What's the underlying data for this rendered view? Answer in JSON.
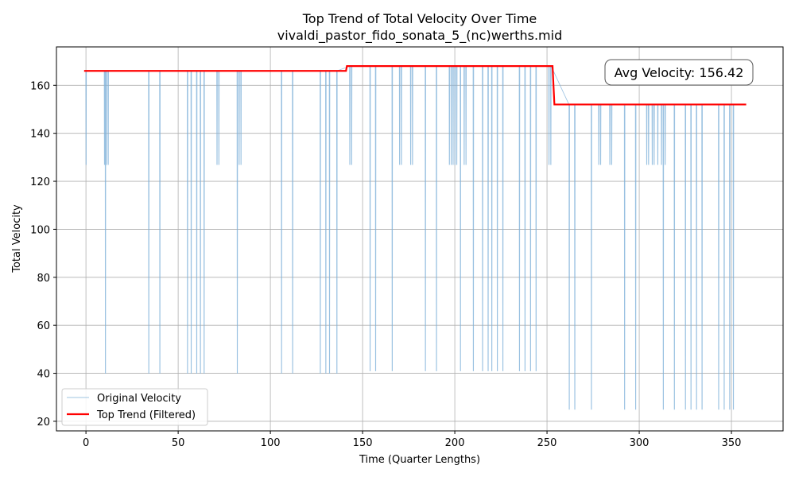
{
  "chart_data": {
    "type": "line",
    "title": "Top Trend of Total Velocity Over Time",
    "subtitle": "vivaldi_pastor_fido_sonata_5_(nc)werths.mid",
    "xlabel": "Time (Quarter Lengths)",
    "ylabel": "Total Velocity",
    "xlim": [
      -16,
      378
    ],
    "ylim": [
      16,
      176
    ],
    "xticks": [
      0,
      50,
      100,
      150,
      200,
      250,
      300,
      350
    ],
    "yticks": [
      20,
      40,
      60,
      80,
      100,
      120,
      140,
      160
    ],
    "grid": true,
    "legend_position": "lower-left",
    "annotation": "Avg Velocity: 156.42",
    "colors": {
      "original": "#7fb2d9",
      "trend": "#ff0000"
    },
    "series": [
      {
        "name": "Original Velocity",
        "base": {
          "x": [
            0,
            254
          ],
          "y": [
            166,
            152
          ]
        },
        "dips": [
          [
            0,
            127
          ],
          [
            10,
            127
          ],
          [
            10.5,
            40
          ],
          [
            11,
            127
          ],
          [
            12,
            127
          ],
          [
            34,
            40
          ],
          [
            40,
            40
          ],
          [
            55,
            40
          ],
          [
            57,
            40
          ],
          [
            60,
            40
          ],
          [
            62,
            40
          ],
          [
            64,
            40
          ],
          [
            71,
            127
          ],
          [
            72,
            127
          ],
          [
            82,
            40
          ],
          [
            83,
            127
          ],
          [
            84,
            127
          ],
          [
            106,
            40
          ],
          [
            112,
            40
          ],
          [
            127,
            40
          ],
          [
            130,
            40
          ],
          [
            132,
            40
          ],
          [
            136,
            40
          ],
          [
            143,
            127
          ],
          [
            144,
            127
          ],
          [
            154,
            41
          ],
          [
            157,
            41
          ],
          [
            166,
            41
          ],
          [
            170,
            127
          ],
          [
            171,
            127
          ],
          [
            176,
            127
          ],
          [
            177,
            127
          ],
          [
            184,
            41
          ],
          [
            190,
            41
          ],
          [
            197,
            127
          ],
          [
            198,
            127
          ],
          [
            199,
            127
          ],
          [
            200,
            127
          ],
          [
            201,
            127
          ],
          [
            203,
            41
          ],
          [
            205,
            127
          ],
          [
            206,
            127
          ],
          [
            210,
            41
          ],
          [
            215,
            41
          ],
          [
            218,
            41
          ],
          [
            220,
            41
          ],
          [
            223,
            41
          ],
          [
            226,
            41
          ],
          [
            235,
            41
          ],
          [
            238,
            41
          ],
          [
            241,
            41
          ],
          [
            244,
            41
          ],
          [
            251,
            127
          ],
          [
            252,
            127
          ],
          [
            262,
            25
          ],
          [
            265,
            25
          ],
          [
            274,
            25
          ],
          [
            278,
            127
          ],
          [
            279,
            127
          ],
          [
            284,
            127
          ],
          [
            285,
            127
          ],
          [
            292,
            25
          ],
          [
            298,
            25
          ],
          [
            304,
            127
          ],
          [
            305,
            127
          ],
          [
            307,
            127
          ],
          [
            308,
            127
          ],
          [
            310,
            127
          ],
          [
            312,
            127
          ],
          [
            313,
            25
          ],
          [
            314,
            127
          ],
          [
            319,
            25
          ],
          [
            325,
            25
          ],
          [
            328,
            25
          ],
          [
            331,
            25
          ],
          [
            334,
            25
          ],
          [
            343,
            25
          ],
          [
            346,
            25
          ],
          [
            349,
            25
          ],
          [
            351,
            25
          ]
        ]
      },
      {
        "name": "Top Trend (Filtered)",
        "x": [
          -1,
          141,
          141.5,
          253,
          254,
          358
        ],
        "y": [
          166,
          166,
          168,
          168,
          152,
          152
        ]
      }
    ]
  }
}
